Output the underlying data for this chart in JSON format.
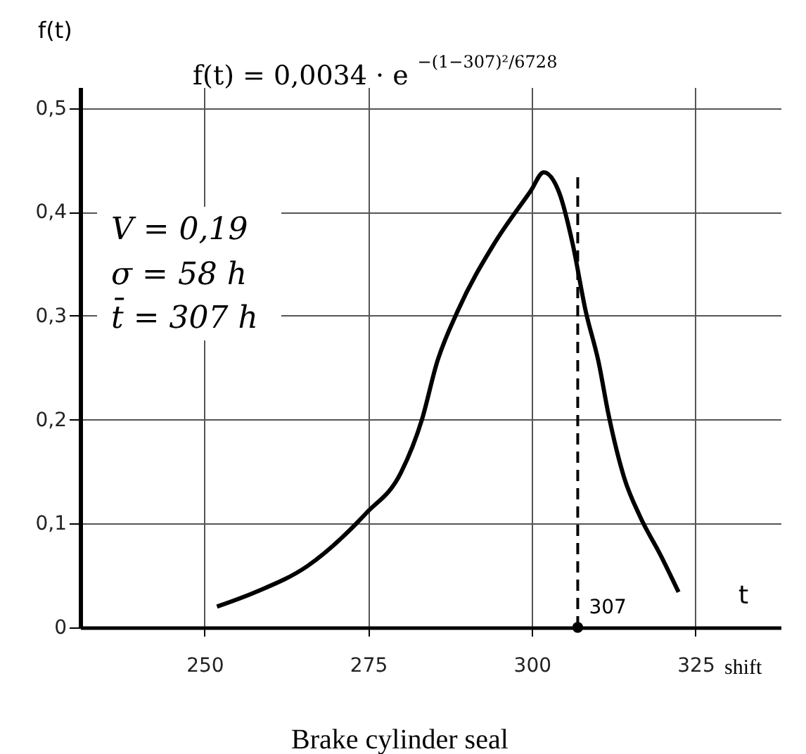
{
  "chart_data": {
    "type": "line",
    "title": "f(t) = 0,0034 · e$^{−(1−307)²/6728}$",
    "xlabel": "t",
    "ylabel": "f(t)",
    "x": [
      251.9,
      257.8,
      265.7,
      274.7,
      280.0,
      283.2,
      285.5,
      288.7,
      294.3,
      299.8,
      301.8,
      304.2,
      306.2,
      308.2,
      310.2,
      311.7,
      314.1,
      316.5,
      319.7,
      322.4
    ],
    "series": [
      {
        "color": "#000000",
        "values": [
          0.02,
          0.034,
          0.059,
          0.11,
          0.149,
          0.2,
          0.255,
          0.305,
          0.37,
          0.42,
          0.438,
          0.418,
          0.37,
          0.305,
          0.255,
          0.205,
          0.144,
          0.107,
          0.069,
          0.034
        ]
      },
      {
        "type": "scatter",
        "color": "#000000",
        "marker": "circle",
        "x": [
          307
        ],
        "values": [
          0
        ]
      }
    ],
    "xlim": [
      231,
      338
    ],
    "ylim": [
      0,
      0.52
    ],
    "xticks": [
      250,
      275,
      300,
      325
    ],
    "yticks": [
      {
        "value": 0,
        "label": "0"
      },
      {
        "value": 0.1,
        "label": "0,1"
      },
      {
        "value": 0.2,
        "label": "0,2"
      },
      {
        "value": 0.3,
        "label": "0,3"
      },
      {
        "value": 0.4,
        "label": "0,4"
      },
      {
        "value": 0.5,
        "label": "0,5"
      }
    ],
    "grid": true,
    "marker": "none",
    "line_style": "solid",
    "ref_lines": [
      {
        "axis": "x",
        "value": 307,
        "label": "307",
        "line_style": "dashed",
        "color": "#000000"
      }
    ],
    "annotations": [
      "V = 0,19",
      "σ = 58 h",
      "t̄ = 307 h",
      "shift",
      "Brake cylinder seal"
    ]
  }
}
